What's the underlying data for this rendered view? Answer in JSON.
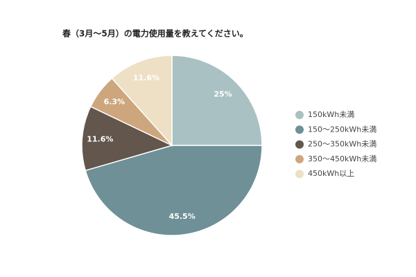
{
  "chart_data": {
    "type": "pie",
    "title": "春（3月～5月）の電力使用量を教えてください。",
    "categories": [
      "150kWh未満",
      "150～250kWh未満",
      "250～350kWh未満",
      "350～450kWh未満",
      "450kWh以上"
    ],
    "values": [
      25,
      45.5,
      11.6,
      6.3,
      11.6
    ],
    "value_labels": [
      "25%",
      "45.5%",
      "11.6%",
      "6.3%",
      "11.6%"
    ],
    "colors": [
      "#a9c1c2",
      "#6e9096",
      "#62564d",
      "#cea67e",
      "#ede0c5"
    ],
    "legend": "right"
  }
}
